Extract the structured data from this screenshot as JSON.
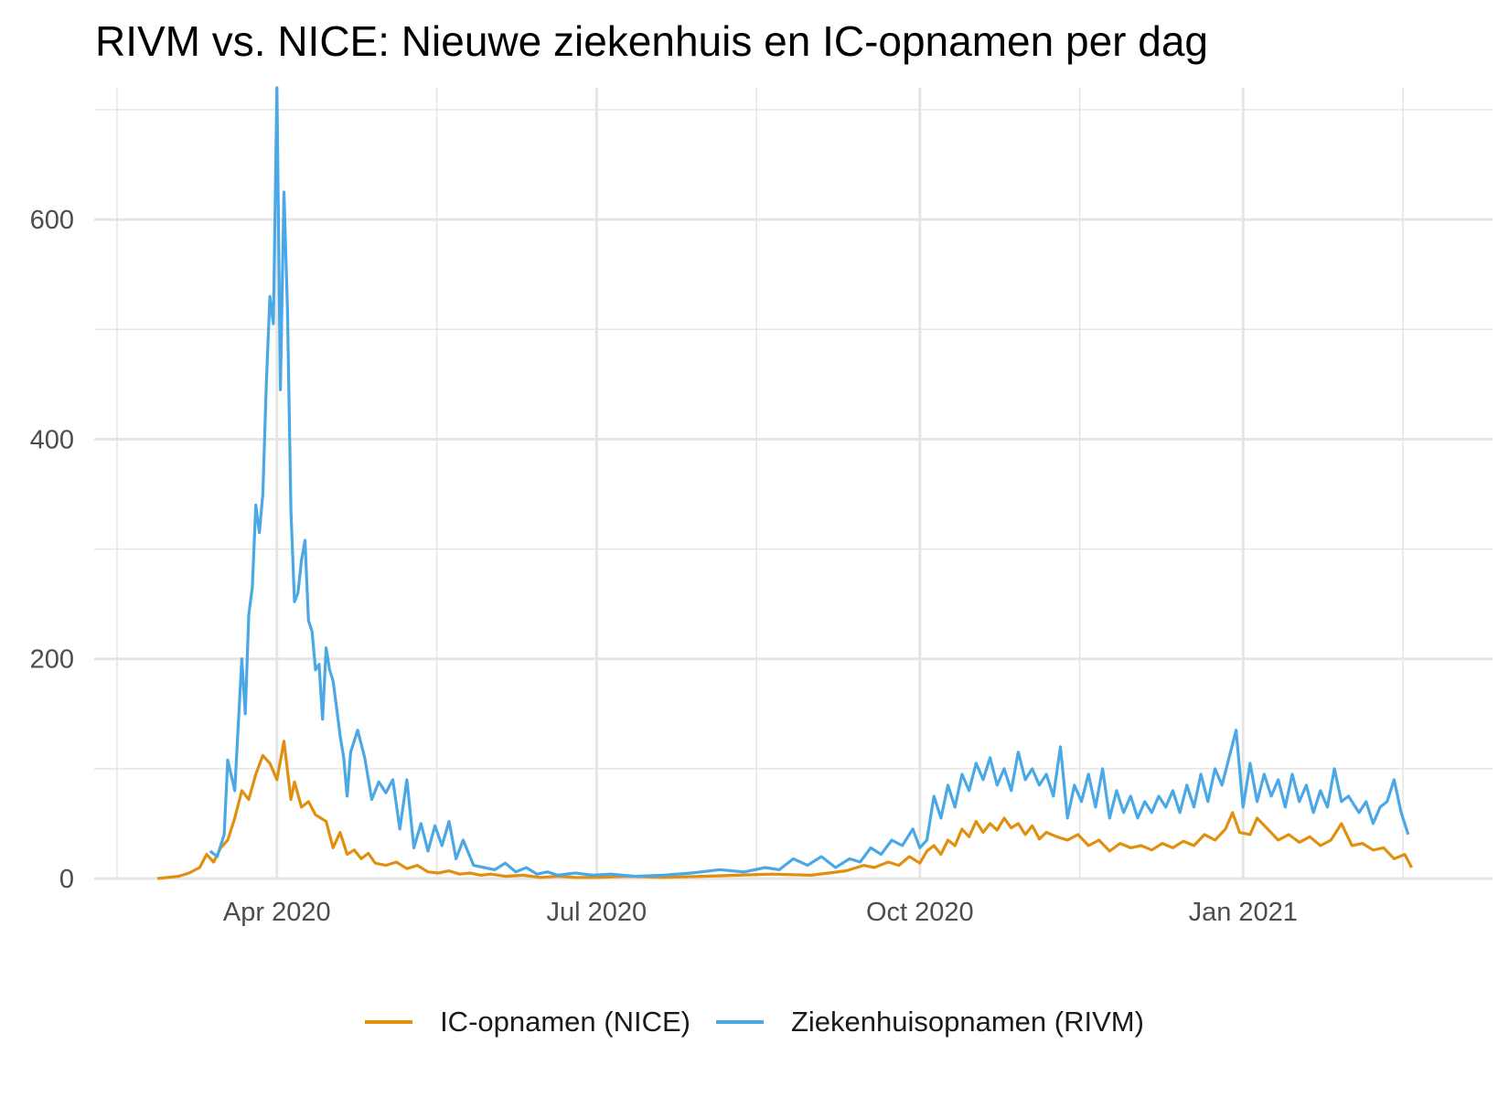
{
  "title": "RIVM vs. NICE: Nieuwe ziekenhuis en IC-opnamen per dag",
  "colors": {
    "ic": "#E0900E",
    "zh": "#4AA8E6",
    "grid": "#e5e5e5"
  },
  "legend": [
    {
      "label": "IC-opnamen (NICE)",
      "color": "#E0900E"
    },
    {
      "label": "Ziekenhuisopnamen (RIVM)",
      "color": "#4AA8E6"
    }
  ],
  "chart_data": {
    "type": "line",
    "title": "RIVM vs. NICE: Nieuwe ziekenhuis en IC-opnamen per dag",
    "xlabel": "",
    "ylabel": "",
    "xlim": [
      "2020-02-09",
      "2021-03-13"
    ],
    "ylim": [
      0,
      720
    ],
    "x_ticks": [
      {
        "label": "Apr 2020",
        "date": "2020-04-01"
      },
      {
        "label": "Jul 2020",
        "date": "2020-07-01"
      },
      {
        "label": "Oct 2020",
        "date": "2020-10-01"
      },
      {
        "label": "Jan 2021",
        "date": "2021-01-01"
      }
    ],
    "y_ticks": [
      0,
      200,
      400,
      600
    ],
    "legend_position": "bottom",
    "grid": true,
    "series": [
      {
        "name": "IC-opnamen (NICE)",
        "color": "#E0900E",
        "points": [
          [
            "2020-02-27",
            0
          ],
          [
            "2020-03-01",
            1
          ],
          [
            "2020-03-04",
            2
          ],
          [
            "2020-03-07",
            5
          ],
          [
            "2020-03-10",
            10
          ],
          [
            "2020-03-12",
            22
          ],
          [
            "2020-03-14",
            15
          ],
          [
            "2020-03-16",
            28
          ],
          [
            "2020-03-18",
            35
          ],
          [
            "2020-03-20",
            55
          ],
          [
            "2020-03-22",
            80
          ],
          [
            "2020-03-24",
            72
          ],
          [
            "2020-03-26",
            95
          ],
          [
            "2020-03-28",
            112
          ],
          [
            "2020-03-30",
            105
          ],
          [
            "2020-04-01",
            90
          ],
          [
            "2020-04-03",
            125
          ],
          [
            "2020-04-05",
            72
          ],
          [
            "2020-04-06",
            88
          ],
          [
            "2020-04-08",
            65
          ],
          [
            "2020-04-10",
            70
          ],
          [
            "2020-04-12",
            58
          ],
          [
            "2020-04-15",
            52
          ],
          [
            "2020-04-17",
            28
          ],
          [
            "2020-04-19",
            42
          ],
          [
            "2020-04-21",
            22
          ],
          [
            "2020-04-23",
            26
          ],
          [
            "2020-04-25",
            18
          ],
          [
            "2020-04-27",
            23
          ],
          [
            "2020-04-29",
            14
          ],
          [
            "2020-05-02",
            12
          ],
          [
            "2020-05-05",
            15
          ],
          [
            "2020-05-08",
            9
          ],
          [
            "2020-05-11",
            12
          ],
          [
            "2020-05-14",
            6
          ],
          [
            "2020-05-17",
            5
          ],
          [
            "2020-05-20",
            7
          ],
          [
            "2020-05-23",
            4
          ],
          [
            "2020-05-26",
            5
          ],
          [
            "2020-05-29",
            3
          ],
          [
            "2020-06-01",
            4
          ],
          [
            "2020-06-05",
            2
          ],
          [
            "2020-06-10",
            3
          ],
          [
            "2020-06-15",
            1
          ],
          [
            "2020-06-20",
            2
          ],
          [
            "2020-06-25",
            1
          ],
          [
            "2020-07-01",
            1
          ],
          [
            "2020-07-10",
            2
          ],
          [
            "2020-07-20",
            1
          ],
          [
            "2020-07-31",
            2
          ],
          [
            "2020-08-10",
            3
          ],
          [
            "2020-08-20",
            4
          ],
          [
            "2020-08-31",
            3
          ],
          [
            "2020-09-05",
            5
          ],
          [
            "2020-09-10",
            7
          ],
          [
            "2020-09-15",
            12
          ],
          [
            "2020-09-18",
            10
          ],
          [
            "2020-09-22",
            15
          ],
          [
            "2020-09-25",
            12
          ],
          [
            "2020-09-28",
            20
          ],
          [
            "2020-10-01",
            14
          ],
          [
            "2020-10-03",
            25
          ],
          [
            "2020-10-05",
            30
          ],
          [
            "2020-10-07",
            22
          ],
          [
            "2020-10-09",
            35
          ],
          [
            "2020-10-11",
            30
          ],
          [
            "2020-10-13",
            45
          ],
          [
            "2020-10-15",
            38
          ],
          [
            "2020-10-17",
            52
          ],
          [
            "2020-10-19",
            42
          ],
          [
            "2020-10-21",
            50
          ],
          [
            "2020-10-23",
            44
          ],
          [
            "2020-10-25",
            55
          ],
          [
            "2020-10-27",
            46
          ],
          [
            "2020-10-29",
            50
          ],
          [
            "2020-10-31",
            40
          ],
          [
            "2020-11-02",
            48
          ],
          [
            "2020-11-04",
            36
          ],
          [
            "2020-11-06",
            42
          ],
          [
            "2020-11-09",
            38
          ],
          [
            "2020-11-12",
            35
          ],
          [
            "2020-11-15",
            40
          ],
          [
            "2020-11-18",
            30
          ],
          [
            "2020-11-21",
            35
          ],
          [
            "2020-11-24",
            25
          ],
          [
            "2020-11-27",
            32
          ],
          [
            "2020-11-30",
            28
          ],
          [
            "2020-12-03",
            30
          ],
          [
            "2020-12-06",
            26
          ],
          [
            "2020-12-09",
            32
          ],
          [
            "2020-12-12",
            28
          ],
          [
            "2020-12-15",
            34
          ],
          [
            "2020-12-18",
            30
          ],
          [
            "2020-12-21",
            40
          ],
          [
            "2020-12-24",
            35
          ],
          [
            "2020-12-27",
            45
          ],
          [
            "2020-12-29",
            60
          ],
          [
            "2020-12-31",
            42
          ],
          [
            "2021-01-03",
            40
          ],
          [
            "2021-01-05",
            55
          ],
          [
            "2021-01-08",
            45
          ],
          [
            "2021-01-11",
            35
          ],
          [
            "2021-01-14",
            40
          ],
          [
            "2021-01-17",
            33
          ],
          [
            "2021-01-20",
            38
          ],
          [
            "2021-01-23",
            30
          ],
          [
            "2021-01-26",
            35
          ],
          [
            "2021-01-29",
            50
          ],
          [
            "2021-02-01",
            30
          ],
          [
            "2021-02-04",
            32
          ],
          [
            "2021-02-07",
            26
          ],
          [
            "2021-02-10",
            28
          ],
          [
            "2021-02-13",
            18
          ],
          [
            "2021-02-16",
            22
          ],
          [
            "2021-02-18",
            10
          ]
        ]
      },
      {
        "name": "Ziekenhuisopnamen (RIVM)",
        "color": "#4AA8E6",
        "points": [
          [
            "2020-03-13",
            25
          ],
          [
            "2020-03-15",
            20
          ],
          [
            "2020-03-17",
            40
          ],
          [
            "2020-03-18",
            108
          ],
          [
            "2020-03-20",
            80
          ],
          [
            "2020-03-22",
            200
          ],
          [
            "2020-03-23",
            150
          ],
          [
            "2020-03-24",
            240
          ],
          [
            "2020-03-25",
            265
          ],
          [
            "2020-03-26",
            340
          ],
          [
            "2020-03-27",
            315
          ],
          [
            "2020-03-28",
            350
          ],
          [
            "2020-03-29",
            450
          ],
          [
            "2020-03-30",
            530
          ],
          [
            "2020-03-31",
            505
          ],
          [
            "2020-04-01",
            720
          ],
          [
            "2020-04-02",
            445
          ],
          [
            "2020-04-03",
            625
          ],
          [
            "2020-04-04",
            520
          ],
          [
            "2020-04-05",
            335
          ],
          [
            "2020-04-06",
            252
          ],
          [
            "2020-04-07",
            260
          ],
          [
            "2020-04-08",
            290
          ],
          [
            "2020-04-09",
            308
          ],
          [
            "2020-04-10",
            235
          ],
          [
            "2020-04-11",
            225
          ],
          [
            "2020-04-12",
            190
          ],
          [
            "2020-04-13",
            195
          ],
          [
            "2020-04-14",
            145
          ],
          [
            "2020-04-15",
            210
          ],
          [
            "2020-04-16",
            190
          ],
          [
            "2020-04-17",
            180
          ],
          [
            "2020-04-18",
            155
          ],
          [
            "2020-04-19",
            130
          ],
          [
            "2020-04-20",
            110
          ],
          [
            "2020-04-21",
            75
          ],
          [
            "2020-04-22",
            115
          ],
          [
            "2020-04-24",
            135
          ],
          [
            "2020-04-26",
            110
          ],
          [
            "2020-04-28",
            72
          ],
          [
            "2020-04-30",
            88
          ],
          [
            "2020-05-02",
            78
          ],
          [
            "2020-05-04",
            90
          ],
          [
            "2020-05-06",
            45
          ],
          [
            "2020-05-08",
            90
          ],
          [
            "2020-05-10",
            28
          ],
          [
            "2020-05-12",
            50
          ],
          [
            "2020-05-14",
            25
          ],
          [
            "2020-05-16",
            48
          ],
          [
            "2020-05-18",
            30
          ],
          [
            "2020-05-20",
            52
          ],
          [
            "2020-05-22",
            18
          ],
          [
            "2020-05-24",
            35
          ],
          [
            "2020-05-27",
            12
          ],
          [
            "2020-05-30",
            10
          ],
          [
            "2020-06-02",
            8
          ],
          [
            "2020-06-05",
            14
          ],
          [
            "2020-06-08",
            6
          ],
          [
            "2020-06-11",
            10
          ],
          [
            "2020-06-14",
            4
          ],
          [
            "2020-06-17",
            6
          ],
          [
            "2020-06-20",
            3
          ],
          [
            "2020-06-25",
            5
          ],
          [
            "2020-06-30",
            3
          ],
          [
            "2020-07-05",
            4
          ],
          [
            "2020-07-12",
            2
          ],
          [
            "2020-07-20",
            3
          ],
          [
            "2020-07-28",
            5
          ],
          [
            "2020-08-05",
            8
          ],
          [
            "2020-08-12",
            6
          ],
          [
            "2020-08-18",
            10
          ],
          [
            "2020-08-22",
            8
          ],
          [
            "2020-08-26",
            18
          ],
          [
            "2020-08-30",
            12
          ],
          [
            "2020-09-03",
            20
          ],
          [
            "2020-09-07",
            10
          ],
          [
            "2020-09-11",
            18
          ],
          [
            "2020-09-14",
            15
          ],
          [
            "2020-09-17",
            28
          ],
          [
            "2020-09-20",
            22
          ],
          [
            "2020-09-23",
            35
          ],
          [
            "2020-09-26",
            30
          ],
          [
            "2020-09-29",
            45
          ],
          [
            "2020-10-01",
            28
          ],
          [
            "2020-10-03",
            35
          ],
          [
            "2020-10-05",
            75
          ],
          [
            "2020-10-07",
            55
          ],
          [
            "2020-10-09",
            85
          ],
          [
            "2020-10-11",
            65
          ],
          [
            "2020-10-13",
            95
          ],
          [
            "2020-10-15",
            80
          ],
          [
            "2020-10-17",
            105
          ],
          [
            "2020-10-19",
            90
          ],
          [
            "2020-10-21",
            110
          ],
          [
            "2020-10-23",
            85
          ],
          [
            "2020-10-25",
            100
          ],
          [
            "2020-10-27",
            80
          ],
          [
            "2020-10-29",
            115
          ],
          [
            "2020-10-31",
            90
          ],
          [
            "2020-11-02",
            100
          ],
          [
            "2020-11-04",
            85
          ],
          [
            "2020-11-06",
            95
          ],
          [
            "2020-11-08",
            75
          ],
          [
            "2020-11-10",
            120
          ],
          [
            "2020-11-12",
            55
          ],
          [
            "2020-11-14",
            85
          ],
          [
            "2020-11-16",
            70
          ],
          [
            "2020-11-18",
            95
          ],
          [
            "2020-11-20",
            65
          ],
          [
            "2020-11-22",
            100
          ],
          [
            "2020-11-24",
            55
          ],
          [
            "2020-11-26",
            80
          ],
          [
            "2020-11-28",
            60
          ],
          [
            "2020-11-30",
            75
          ],
          [
            "2020-12-02",
            55
          ],
          [
            "2020-12-04",
            70
          ],
          [
            "2020-12-06",
            60
          ],
          [
            "2020-12-08",
            75
          ],
          [
            "2020-12-10",
            65
          ],
          [
            "2020-12-12",
            80
          ],
          [
            "2020-12-14",
            60
          ],
          [
            "2020-12-16",
            85
          ],
          [
            "2020-12-18",
            65
          ],
          [
            "2020-12-20",
            95
          ],
          [
            "2020-12-22",
            70
          ],
          [
            "2020-12-24",
            100
          ],
          [
            "2020-12-26",
            85
          ],
          [
            "2020-12-28",
            110
          ],
          [
            "2020-12-30",
            135
          ],
          [
            "2021-01-01",
            65
          ],
          [
            "2021-01-03",
            105
          ],
          [
            "2021-01-05",
            70
          ],
          [
            "2021-01-07",
            95
          ],
          [
            "2021-01-09",
            75
          ],
          [
            "2021-01-11",
            90
          ],
          [
            "2021-01-13",
            65
          ],
          [
            "2021-01-15",
            95
          ],
          [
            "2021-01-17",
            70
          ],
          [
            "2021-01-19",
            85
          ],
          [
            "2021-01-21",
            60
          ],
          [
            "2021-01-23",
            80
          ],
          [
            "2021-01-25",
            65
          ],
          [
            "2021-01-27",
            100
          ],
          [
            "2021-01-29",
            70
          ],
          [
            "2021-01-31",
            75
          ],
          [
            "2021-02-03",
            60
          ],
          [
            "2021-02-05",
            70
          ],
          [
            "2021-02-07",
            50
          ],
          [
            "2021-02-09",
            65
          ],
          [
            "2021-02-11",
            70
          ],
          [
            "2021-02-13",
            90
          ],
          [
            "2021-02-15",
            60
          ],
          [
            "2021-02-17",
            40
          ]
        ]
      }
    ]
  }
}
